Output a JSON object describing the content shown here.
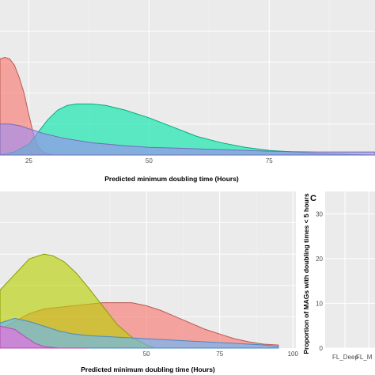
{
  "colors": {
    "panel_bg": "#ebebeb",
    "grid_major": "#ffffff",
    "grid_minor": "#f4f4f4",
    "tick_text": "#4d4d4d"
  },
  "chart_data": [
    {
      "type": "area",
      "panel": "top-density",
      "xlabel": "Predicted minimum doubling time (Hours)",
      "x_ticks": [
        25,
        50,
        75
      ],
      "xlim": [
        19,
        97
      ],
      "ylim": [
        0,
        1
      ],
      "grid": true,
      "series": [
        {
          "color": "#f8766d",
          "x": [
            19,
            20,
            21,
            22,
            23,
            24,
            25,
            26,
            27,
            28,
            30
          ],
          "y": [
            0.62,
            0.63,
            0.62,
            0.58,
            0.5,
            0.4,
            0.26,
            0.13,
            0.05,
            0.02,
            0.0
          ]
        },
        {
          "color": "#00e6a8",
          "x": [
            19,
            22,
            25,
            27,
            29,
            31,
            33,
            35,
            38,
            41,
            45,
            50,
            55,
            60,
            65,
            70,
            75,
            80,
            85,
            90,
            97
          ],
          "y": [
            0.0,
            0.02,
            0.07,
            0.15,
            0.23,
            0.29,
            0.32,
            0.33,
            0.33,
            0.32,
            0.29,
            0.24,
            0.18,
            0.12,
            0.08,
            0.05,
            0.03,
            0.02,
            0.01,
            0.005,
            0.0
          ]
        },
        {
          "color": "#9c8df2",
          "x": [
            19,
            21,
            23,
            25,
            28,
            32,
            38,
            45,
            50,
            55,
            60,
            65,
            70,
            75,
            80,
            85,
            90,
            97
          ],
          "y": [
            0.2,
            0.2,
            0.19,
            0.17,
            0.14,
            0.11,
            0.08,
            0.06,
            0.05,
            0.045,
            0.04,
            0.035,
            0.03,
            0.025,
            0.022,
            0.02,
            0.02,
            0.02
          ]
        }
      ]
    },
    {
      "type": "area",
      "panel": "bottom-density",
      "xlabel": "Predicted minimum doubling time (Hours)",
      "x_ticks": [
        50,
        75,
        100
      ],
      "xlim": [
        0,
        101
      ],
      "ylim": [
        0,
        1
      ],
      "grid": true,
      "series": [
        {
          "color": "#f8766d",
          "x": [
            0,
            5,
            10,
            15,
            20,
            25,
            30,
            35,
            40,
            45,
            50,
            55,
            60,
            65,
            70,
            75,
            80,
            85,
            90,
            95
          ],
          "y": [
            0.12,
            0.17,
            0.22,
            0.25,
            0.26,
            0.27,
            0.28,
            0.29,
            0.29,
            0.29,
            0.27,
            0.24,
            0.2,
            0.16,
            0.12,
            0.09,
            0.06,
            0.04,
            0.025,
            0.02
          ]
        },
        {
          "color": "#b8d100",
          "x": [
            0,
            5,
            10,
            15,
            18,
            22,
            26,
            30,
            35,
            40,
            45,
            50,
            53
          ],
          "y": [
            0.37,
            0.47,
            0.57,
            0.6,
            0.59,
            0.55,
            0.48,
            0.39,
            0.27,
            0.15,
            0.07,
            0.02,
            0.0
          ]
        },
        {
          "color": "#63b6ff",
          "x": [
            0,
            5,
            10,
            15,
            20,
            25,
            30,
            40,
            50,
            60,
            70,
            80,
            90,
            95
          ],
          "y": [
            0.16,
            0.19,
            0.17,
            0.14,
            0.11,
            0.09,
            0.08,
            0.07,
            0.06,
            0.05,
            0.04,
            0.03,
            0.02,
            0.01
          ]
        },
        {
          "color": "#ef67eb",
          "x": [
            0,
            5,
            8,
            12,
            15,
            20,
            30
          ],
          "y": [
            0.14,
            0.12,
            0.08,
            0.03,
            0.01,
            0.0,
            0.0
          ]
        }
      ]
    },
    {
      "type": "scatter",
      "panel": "C",
      "panel_letter": "C",
      "ylabel": "Proportion of MAGs with doubling times < 5 hours",
      "y_ticks": [
        0,
        10,
        20,
        30
      ],
      "ylim": [
        0,
        35
      ],
      "categories": [
        "FL_Deep",
        "FL_M"
      ],
      "grid": true
    }
  ]
}
